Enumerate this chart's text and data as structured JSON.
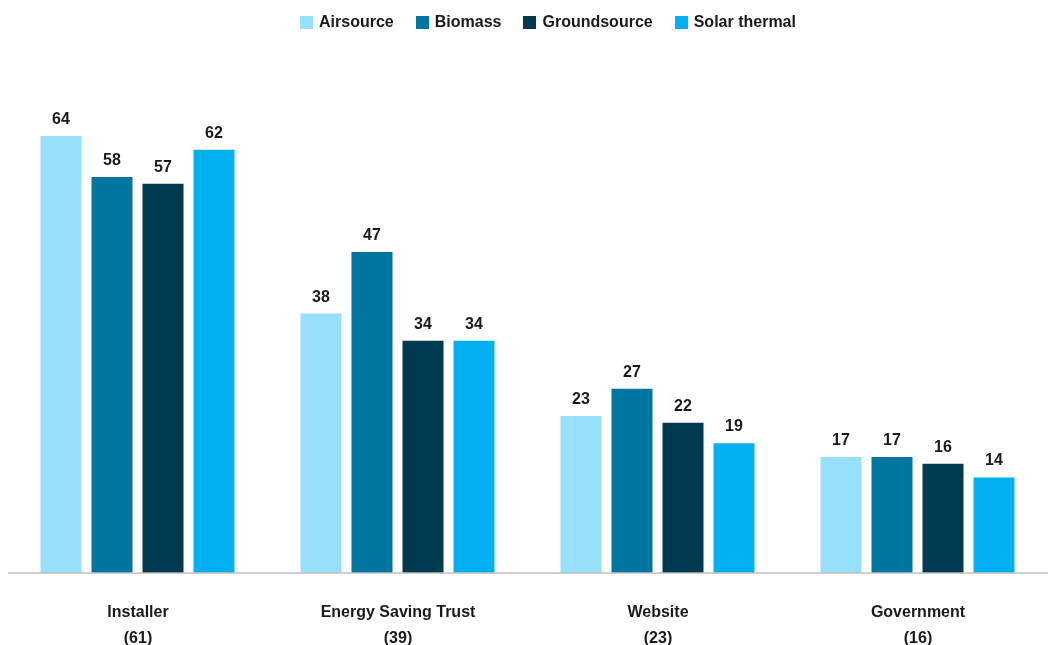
{
  "chart_data": {
    "type": "bar",
    "categories": [
      "Installer\n(61)",
      "Energy Saving Trust\n(39)",
      "Website\n(23)",
      "Government\n(16)"
    ],
    "series": [
      {
        "name": "Airsource",
        "color": "#97e0fc",
        "values": [
          64,
          38,
          23,
          17
        ]
      },
      {
        "name": "Biomass",
        "color": "#0075a0",
        "values": [
          58,
          47,
          27,
          17
        ]
      },
      {
        "name": "Groundsource",
        "color": "#003a4f",
        "values": [
          57,
          34,
          22,
          16
        ]
      },
      {
        "name": "Solar thermal",
        "color": "#00b0f0",
        "values": [
          62,
          34,
          19,
          14
        ]
      }
    ],
    "data_labels": true,
    "legend": "top",
    "grid": false
  }
}
